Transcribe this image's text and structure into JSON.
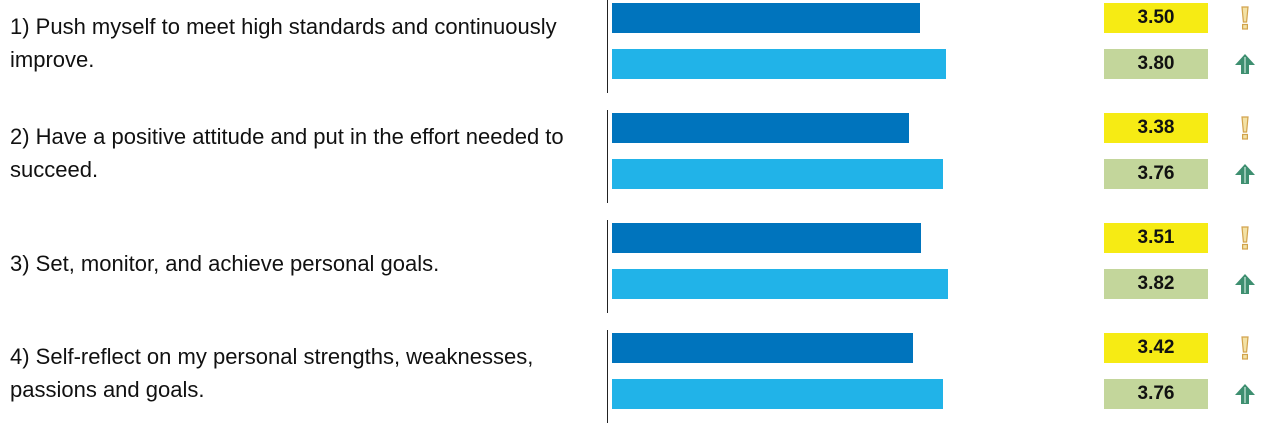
{
  "colors": {
    "bar_first": "#0074BD",
    "bar_second": "#21B3E8",
    "value_box_first": "#F6EB14",
    "value_box_second": "#C3D69B",
    "warning_icon": "#D2A24C",
    "up_icon": "#3E8F70"
  },
  "chart_data": {
    "type": "bar",
    "orientation": "horizontal",
    "xlim": [
      0,
      4.4
    ],
    "grid": false,
    "legend": "none",
    "categories": [
      "1) Push myself to meet high standards and continuously improve.",
      "2) Have a positive attitude and put in the effort needed to succeed.",
      "3) Set, monitor, and achieve personal goals.",
      "4) Self-reflect on my personal strengths, weaknesses, passions and goals."
    ],
    "series": [
      {
        "values": [
          3.5,
          3.38,
          3.51,
          3.42
        ],
        "labels": [
          "3.50",
          "3.38",
          "3.51",
          "3.42"
        ],
        "icon": "exclamation-icon"
      },
      {
        "values": [
          3.8,
          3.76,
          3.82,
          3.76
        ],
        "labels": [
          "3.80",
          "3.76",
          "3.82",
          "3.76"
        ],
        "icon": "up-arrow-icon"
      }
    ]
  }
}
